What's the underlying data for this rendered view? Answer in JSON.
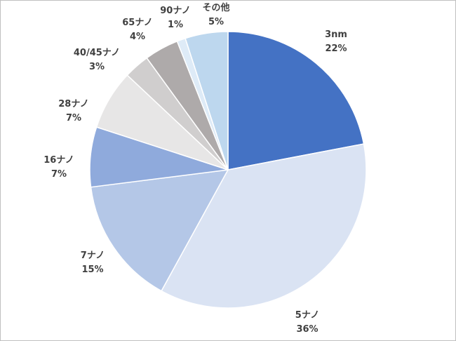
{
  "chart_data": {
    "type": "pie",
    "title": "",
    "start_angle_deg": 0,
    "direction": "clockwise",
    "slices": [
      {
        "label": "3nm",
        "value": 22,
        "value_label": "22%",
        "color": "#4472C4"
      },
      {
        "label": "5ナノ",
        "value": 36,
        "value_label": "36%",
        "color": "#DAE3F3"
      },
      {
        "label": "7ナノ",
        "value": 15,
        "value_label": "15%",
        "color": "#B4C7E7"
      },
      {
        "label": "16ナノ",
        "value": 7,
        "value_label": "7%",
        "color": "#8FAADC"
      },
      {
        "label": "28ナノ",
        "value": 7,
        "value_label": "7%",
        "color": "#E7E6E6"
      },
      {
        "label": "40/45ナノ",
        "value": 3,
        "value_label": "3%",
        "color": "#D0CECE"
      },
      {
        "label": "65ナノ",
        "value": 4,
        "value_label": "4%",
        "color": "#AEAAAA"
      },
      {
        "label": "90ナノ",
        "value": 1,
        "value_label": "1%",
        "color": "#DEEBF7"
      },
      {
        "label": "その他",
        "value": 5,
        "value_label": "5%",
        "color": "#BDD7EE"
      }
    ]
  }
}
